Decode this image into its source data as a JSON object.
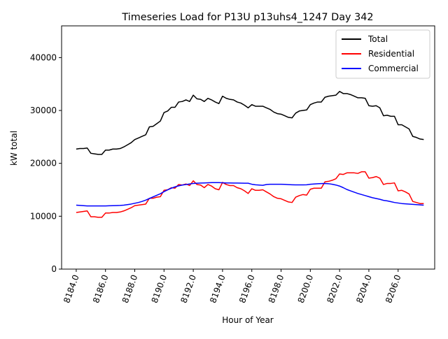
{
  "chart_data": {
    "type": "line",
    "title": "Timeseries Load for P13U p13uhs4_1247  Day 342",
    "xlabel": "Hour of Year",
    "ylabel": "kW total",
    "xlim": [
      8183.0,
      8208.5
    ],
    "ylim": [
      0,
      46000
    ],
    "x_ticks": [
      8184,
      8186,
      8188,
      8190,
      8192,
      8194,
      8196,
      8198,
      8200,
      8202,
      8204,
      8206
    ],
    "x_tick_labels": [
      "8184.0",
      "8186.0",
      "8188.0",
      "8190.0",
      "8192.0",
      "8194.0",
      "8196.0",
      "8198.0",
      "8200.0",
      "8202.0",
      "8204.0",
      "8206.0"
    ],
    "y_ticks": [
      0,
      10000,
      20000,
      30000,
      40000
    ],
    "y_tick_labels": [
      "0",
      "10000",
      "20000",
      "30000",
      "40000"
    ],
    "grid": false,
    "legend_position": "top-right",
    "x_start": 8184.0,
    "x_step": 0.25,
    "series": [
      {
        "name": "Total",
        "color": "#000000",
        "values": [
          22700,
          22800,
          22800,
          22900,
          21900,
          21800,
          21700,
          21700,
          22500,
          22500,
          22700,
          22700,
          22800,
          23100,
          23500,
          23900,
          24500,
          24800,
          25100,
          25400,
          26900,
          27000,
          27500,
          28000,
          29600,
          29900,
          30600,
          30600,
          31600,
          31700,
          32000,
          31700,
          32900,
          32200,
          32100,
          31700,
          32300,
          32000,
          31600,
          31300,
          32700,
          32300,
          32100,
          32000,
          31600,
          31400,
          31000,
          30500,
          31100,
          30800,
          30800,
          30800,
          30500,
          30200,
          29700,
          29400,
          29300,
          29000,
          28700,
          28600,
          29500,
          29900,
          30000,
          30100,
          31100,
          31400,
          31600,
          31600,
          32500,
          32700,
          32800,
          32900,
          33600,
          33200,
          33200,
          33000,
          32700,
          32400,
          32400,
          32300,
          30900,
          30800,
          30900,
          30500,
          29000,
          29100,
          28900,
          28900,
          27300,
          27300,
          26900,
          26500,
          25100,
          24900,
          24600,
          24500
        ]
      },
      {
        "name": "Residential",
        "color": "#ff0000",
        "values": [
          10700,
          10800,
          10900,
          11000,
          9900,
          9900,
          9800,
          9800,
          10600,
          10600,
          10700,
          10700,
          10800,
          11000,
          11300,
          11600,
          12000,
          12100,
          12200,
          12300,
          13400,
          13400,
          13600,
          13700,
          14900,
          15000,
          15400,
          15300,
          16000,
          15900,
          16100,
          15800,
          16700,
          16000,
          15900,
          15400,
          16000,
          15700,
          15200,
          15000,
          16400,
          16000,
          15800,
          15800,
          15400,
          15200,
          14800,
          14300,
          15200,
          14900,
          14900,
          15000,
          14600,
          14200,
          13700,
          13400,
          13300,
          13000,
          12700,
          12600,
          13600,
          13900,
          14100,
          14000,
          15100,
          15300,
          15300,
          15300,
          16500,
          16600,
          16800,
          17100,
          18000,
          17900,
          18200,
          18200,
          18200,
          18100,
          18400,
          18400,
          17200,
          17300,
          17500,
          17200,
          16000,
          16200,
          16200,
          16300,
          14800,
          14900,
          14600,
          14200,
          12800,
          12600,
          12400,
          12400
        ]
      },
      {
        "name": "Commercial",
        "color": "#0000ff",
        "values": [
          12100,
          12050,
          12000,
          11950,
          11950,
          11950,
          11950,
          11950,
          11950,
          11980,
          12000,
          12020,
          12050,
          12100,
          12200,
          12300,
          12450,
          12600,
          12800,
          13050,
          13350,
          13650,
          13950,
          14250,
          14650,
          15000,
          15300,
          15550,
          15750,
          15900,
          16000,
          16100,
          16200,
          16250,
          16280,
          16300,
          16330,
          16350,
          16350,
          16350,
          16320,
          16300,
          16290,
          16280,
          16270,
          16260,
          16250,
          16240,
          16050,
          15950,
          15900,
          15850,
          16000,
          16050,
          16050,
          16050,
          16050,
          16020,
          15980,
          15950,
          15930,
          15920,
          15920,
          15950,
          16050,
          16100,
          16150,
          16180,
          16200,
          16150,
          16050,
          15900,
          15700,
          15400,
          15050,
          14800,
          14550,
          14300,
          14100,
          13900,
          13700,
          13500,
          13350,
          13200,
          13000,
          12900,
          12750,
          12600,
          12500,
          12400,
          12350,
          12300,
          12250,
          12200,
          12150,
          12100
        ]
      }
    ]
  }
}
